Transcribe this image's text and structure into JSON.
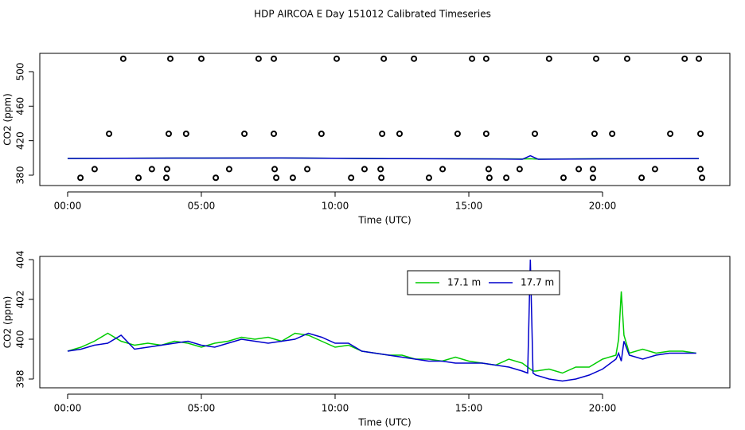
{
  "chart_data": [
    {
      "type": "scatter",
      "title": "HDP AIRCOA E  Day 151012  Calibrated Timeseries",
      "xlabel": "Time (UTC)",
      "ylabel": "CO2 (ppm)",
      "xlim": [
        -1.04,
        24.76
      ],
      "ylim": [
        368,
        521.2
      ],
      "xticks": [
        {
          "value": 0,
          "label": "00:00"
        },
        {
          "value": 5,
          "label": "05:00"
        },
        {
          "value": 10,
          "label": "10:00"
        },
        {
          "value": 15,
          "label": "15:00"
        },
        {
          "value": 20,
          "label": "20:00"
        }
      ],
      "yticks": [
        380,
        420,
        460,
        500
      ],
      "series": [
        {
          "color": "#000000",
          "style": "circle",
          "x": [
            2.08,
            3.84,
            5.0,
            7.14,
            7.71,
            10.06,
            11.82,
            12.95,
            15.12,
            15.65,
            18.0,
            19.76,
            20.92,
            23.07,
            23.6,
            1.55,
            3.78,
            4.43,
            6.61,
            7.71,
            9.49,
            11.76,
            12.41,
            14.58,
            15.65,
            17.47,
            19.7,
            20.36,
            22.53,
            23.66,
            1.01,
            3.15,
            3.72,
            6.04,
            7.74,
            8.96,
            11.1,
            11.7,
            14.02,
            15.74,
            16.9,
            19.11,
            19.64,
            21.96,
            23.66,
            0.48,
            2.65,
            3.69,
            5.54,
            7.8,
            8.42,
            10.6,
            11.73,
            13.51,
            15.77,
            16.4,
            18.54,
            19.64,
            21.46,
            23.72
          ],
          "values": [
            515,
            515,
            515,
            515,
            515,
            515,
            515,
            515,
            515,
            515,
            515,
            515,
            515,
            515,
            515,
            428,
            428,
            428,
            428,
            428,
            428,
            428,
            428,
            428,
            428,
            428,
            428,
            428,
            428,
            428,
            387,
            387,
            387,
            387,
            387,
            387,
            387,
            387,
            387,
            387,
            387,
            387,
            387,
            387,
            387,
            377,
            377,
            377,
            377,
            377,
            377,
            377,
            377,
            377,
            377,
            377,
            377,
            377,
            377,
            377
          ]
        },
        {
          "color": "#00cc00",
          "style": "line",
          "x": [
            0,
            4,
            8,
            12,
            16,
            17,
            17.3,
            17.6,
            20,
            23.6
          ],
          "values": [
            399.5,
            399.8,
            400,
            399.3,
            398.9,
            398.8,
            399,
            398.6,
            399.2,
            399.3
          ]
        },
        {
          "color": "#0000cc",
          "style": "line",
          "x": [
            0,
            4,
            8,
            12,
            16,
            17,
            17.3,
            17.6,
            20,
            23.6
          ],
          "values": [
            399.4,
            399.8,
            400,
            399.2,
            398.8,
            398.4,
            402.5,
            398.4,
            398.9,
            399.3
          ]
        }
      ]
    },
    {
      "type": "line",
      "xlabel": "Time (UTC)",
      "ylabel": "CO2 (ppm)",
      "xlim": [
        -1.04,
        24.76
      ],
      "ylim": [
        397.56,
        404.16
      ],
      "xticks": [
        {
          "value": 0,
          "label": "00:00"
        },
        {
          "value": 5,
          "label": "05:00"
        },
        {
          "value": 10,
          "label": "10:00"
        },
        {
          "value": 15,
          "label": "15:00"
        },
        {
          "value": 20,
          "label": "20:00"
        }
      ],
      "yticks": [
        398,
        400,
        402,
        404
      ],
      "x": [
        0,
        0.5,
        1,
        1.5,
        2,
        2.5,
        3,
        3.5,
        4,
        4.5,
        5,
        5.5,
        6,
        6.5,
        7,
        7.5,
        8,
        8.5,
        9,
        9.5,
        10,
        10.5,
        11,
        11.5,
        12,
        12.5,
        13,
        13.5,
        14,
        14.5,
        15,
        15.5,
        16,
        16.5,
        17,
        17.2,
        17.3,
        17.4,
        17.5,
        18,
        18.5,
        19,
        19.5,
        20,
        20.5,
        20.6,
        20.7,
        20.8,
        21,
        21.5,
        22,
        22.5,
        23,
        23.5
      ],
      "series": [
        {
          "name": "17.1 m",
          "color": "#00cc00",
          "values": [
            399.4,
            399.6,
            399.9,
            400.3,
            399.9,
            399.7,
            399.8,
            399.7,
            399.9,
            399.8,
            399.6,
            399.8,
            399.9,
            400.1,
            400.0,
            400.1,
            399.9,
            400.3,
            400.2,
            399.9,
            399.6,
            399.7,
            399.4,
            399.3,
            399.2,
            399.2,
            399.0,
            399.0,
            398.9,
            399.1,
            398.9,
            398.8,
            398.7,
            399.0,
            398.8,
            398.6,
            398.5,
            398.4,
            398.4,
            398.5,
            398.3,
            398.6,
            398.6,
            399.0,
            399.2,
            400.0,
            402.4,
            400.2,
            399.3,
            399.5,
            399.3,
            399.4,
            399.4,
            399.3
          ]
        },
        {
          "name": "17.7 m",
          "color": "#0000cc",
          "values": [
            399.4,
            399.5,
            399.7,
            399.8,
            400.2,
            399.5,
            399.6,
            399.7,
            399.8,
            399.9,
            399.7,
            399.6,
            399.8,
            400.0,
            399.9,
            399.8,
            399.9,
            400.0,
            400.3,
            400.1,
            399.8,
            399.8,
            399.4,
            399.3,
            399.2,
            399.1,
            399.0,
            398.9,
            398.9,
            398.8,
            398.8,
            398.8,
            398.7,
            398.6,
            398.4,
            398.3,
            404.0,
            398.3,
            398.2,
            398.0,
            397.9,
            398.0,
            398.2,
            398.5,
            399.0,
            399.3,
            398.9,
            399.9,
            399.2,
            399.0,
            399.2,
            399.3,
            399.3,
            399.3
          ]
        }
      ]
    }
  ]
}
